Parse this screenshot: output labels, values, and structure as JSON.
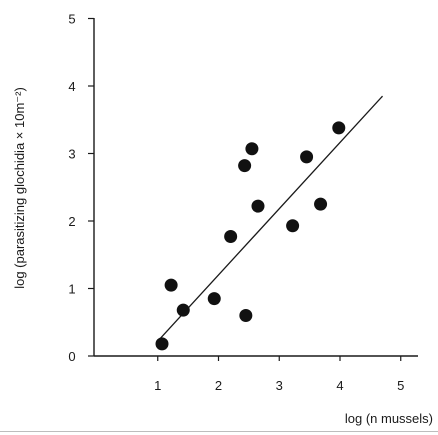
{
  "chart_data": {
    "type": "scatter",
    "title": "",
    "xlabel": "log (n mussels)",
    "ylabel": "log (parasitizing glochidia × 10m⁻²)",
    "xlim": [
      0,
      5
    ],
    "ylim": [
      0,
      5
    ],
    "x_ticks": [
      "1",
      "2",
      "3",
      "4",
      "5"
    ],
    "y_ticks": [
      "0",
      "1",
      "2",
      "3",
      "4",
      "5"
    ],
    "grid": false,
    "legend": "none",
    "points": [
      {
        "x": 1.07,
        "y": 0.18
      },
      {
        "x": 1.22,
        "y": 1.05
      },
      {
        "x": 1.42,
        "y": 0.68
      },
      {
        "x": 1.93,
        "y": 0.85
      },
      {
        "x": 2.2,
        "y": 1.77
      },
      {
        "x": 2.43,
        "y": 2.82
      },
      {
        "x": 2.45,
        "y": 0.6
      },
      {
        "x": 2.55,
        "y": 3.07
      },
      {
        "x": 2.65,
        "y": 2.22
      },
      {
        "x": 3.22,
        "y": 1.93
      },
      {
        "x": 3.45,
        "y": 2.95
      },
      {
        "x": 3.68,
        "y": 2.25
      },
      {
        "x": 3.98,
        "y": 3.38
      }
    ],
    "fit_line": {
      "x": [
        1.0,
        4.7
      ],
      "y": [
        0.22,
        3.85
      ]
    }
  }
}
